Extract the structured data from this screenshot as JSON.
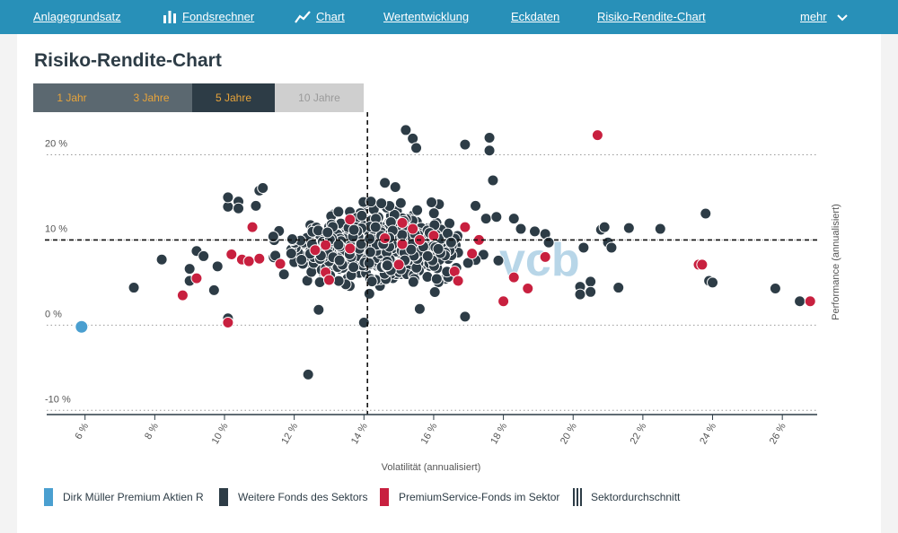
{
  "nav": {
    "items": [
      {
        "label": "Anlagegrundsatz",
        "icon": ""
      },
      {
        "label": "Fondsrechner",
        "icon": "bar-chart-icon"
      },
      {
        "label": "Chart",
        "icon": "line-chart-icon"
      },
      {
        "label": "Wertentwicklung",
        "icon": ""
      },
      {
        "label": "Eckdaten",
        "icon": ""
      },
      {
        "label": "Risiko-Rendite-Chart",
        "icon": ""
      }
    ],
    "more_label": "mehr",
    "active": "Risiko-Rendite-Chart"
  },
  "page": {
    "title": "Risiko-Rendite-Chart"
  },
  "tabs": [
    "1 Jahr",
    "3 Jahre",
    "5 Jahre",
    "10 Jahre"
  ],
  "selected_tab": "5 Jahre",
  "colors": {
    "highlight": "#4a9fd0",
    "sector": "#2d3c46",
    "premium": "#c8203f",
    "nav": "#2890b8"
  },
  "legend": {
    "highlight": "Dirk Müller Premium Aktien R",
    "sector": "Weitere Fonds des Sektors",
    "premium": "PremiumService-Fonds im Sektor",
    "average": "Sektordurchschnitt"
  },
  "chart_data": {
    "type": "scatter",
    "xlabel": "Volatilität (annualisiert)",
    "ylabel": "Performance (annualisiert)",
    "xlim": [
      4.9,
      27.0
    ],
    "ylim": [
      -10.5,
      25.0
    ],
    "xticks": [
      6,
      8,
      10,
      12,
      14,
      16,
      18,
      20,
      22,
      24,
      26
    ],
    "xtick_labels": [
      "6 %",
      "8 %",
      "10 %",
      "12 %",
      "14 %",
      "16 %",
      "18 %",
      "20 %",
      "22 %",
      "24 %",
      "26 %"
    ],
    "yticks": [
      -10,
      0,
      10,
      20
    ],
    "ytick_labels": [
      "-10 %",
      "0 %",
      "10 %",
      "20 %"
    ],
    "sector_average": {
      "x": 14.1,
      "y": 10.0
    },
    "highlight": {
      "name": "Dirk Müller Premium Aktien R",
      "x": 5.9,
      "y": -0.2
    },
    "premium_points": [
      [
        8.8,
        3.5
      ],
      [
        9.2,
        5.5
      ],
      [
        10.1,
        0.3
      ],
      [
        10.2,
        8.3
      ],
      [
        10.5,
        7.7
      ],
      [
        10.7,
        7.5
      ],
      [
        10.8,
        11.5
      ],
      [
        11.0,
        7.8
      ],
      [
        11.6,
        7.2
      ],
      [
        12.6,
        8.8
      ],
      [
        12.9,
        6.2
      ],
      [
        12.9,
        9.4
      ],
      [
        13.0,
        5.3
      ],
      [
        13.6,
        9.0
      ],
      [
        13.6,
        12.4
      ],
      [
        14.6,
        10.2
      ],
      [
        15.0,
        7.1
      ],
      [
        15.1,
        9.5
      ],
      [
        15.1,
        12.0
      ],
      [
        15.4,
        11.3
      ],
      [
        15.6,
        10.0
      ],
      [
        16.0,
        10.5
      ],
      [
        16.6,
        6.3
      ],
      [
        16.7,
        5.2
      ],
      [
        16.9,
        11.5
      ],
      [
        17.1,
        8.4
      ],
      [
        17.3,
        10.0
      ],
      [
        18.0,
        2.8
      ],
      [
        18.3,
        5.6
      ],
      [
        18.7,
        4.3
      ],
      [
        19.2,
        8.0
      ],
      [
        20.7,
        22.3
      ],
      [
        23.6,
        7.1
      ],
      [
        23.7,
        7.1
      ],
      [
        26.8,
        2.8
      ]
    ],
    "sector_points": [
      [
        7.4,
        4.4
      ],
      [
        8.2,
        7.7
      ],
      [
        9.0,
        5.2
      ],
      [
        9.0,
        6.6
      ],
      [
        9.2,
        8.7
      ],
      [
        9.4,
        8.1
      ],
      [
        9.7,
        4.1
      ],
      [
        9.8,
        6.9
      ],
      [
        10.1,
        0.8
      ],
      [
        10.1,
        13.9
      ],
      [
        10.1,
        15.0
      ],
      [
        10.4,
        14.5
      ],
      [
        10.4,
        13.7
      ],
      [
        10.9,
        14.0
      ],
      [
        11.0,
        15.8
      ],
      [
        11.1,
        16.1
      ],
      [
        11.4,
        10.4
      ],
      [
        12.4,
        -5.8
      ],
      [
        12.7,
        1.8
      ],
      [
        13.3,
        7.6
      ],
      [
        13.7,
        6.8
      ],
      [
        14.0,
        0.3
      ],
      [
        14.2,
        14.5
      ],
      [
        14.5,
        14.3
      ],
      [
        14.6,
        16.7
      ],
      [
        14.9,
        16.2
      ],
      [
        15.2,
        22.9
      ],
      [
        15.4,
        21.9
      ],
      [
        15.5,
        20.8
      ],
      [
        15.6,
        1.9
      ],
      [
        16.5,
        9.7
      ],
      [
        16.9,
        1.0
      ],
      [
        16.9,
        21.2
      ],
      [
        17.2,
        14.0
      ],
      [
        17.5,
        12.5
      ],
      [
        17.6,
        20.5
      ],
      [
        17.6,
        22.0
      ],
      [
        17.7,
        17.0
      ],
      [
        17.8,
        12.7
      ],
      [
        18.3,
        12.5
      ],
      [
        18.5,
        11.3
      ],
      [
        18.9,
        11.0
      ],
      [
        19.2,
        10.7
      ],
      [
        19.3,
        9.7
      ],
      [
        20.2,
        4.5
      ],
      [
        20.2,
        3.6
      ],
      [
        20.3,
        9.1
      ],
      [
        20.5,
        5.1
      ],
      [
        20.5,
        3.9
      ],
      [
        20.8,
        11.2
      ],
      [
        20.9,
        11.5
      ],
      [
        21.0,
        9.7
      ],
      [
        21.1,
        9.1
      ],
      [
        21.3,
        4.4
      ],
      [
        21.6,
        11.4
      ],
      [
        22.5,
        11.3
      ],
      [
        23.8,
        13.1
      ],
      [
        23.9,
        5.2
      ],
      [
        24.0,
        5.0
      ],
      [
        25.8,
        4.3
      ],
      [
        26.5,
        2.8
      ]
    ]
  }
}
